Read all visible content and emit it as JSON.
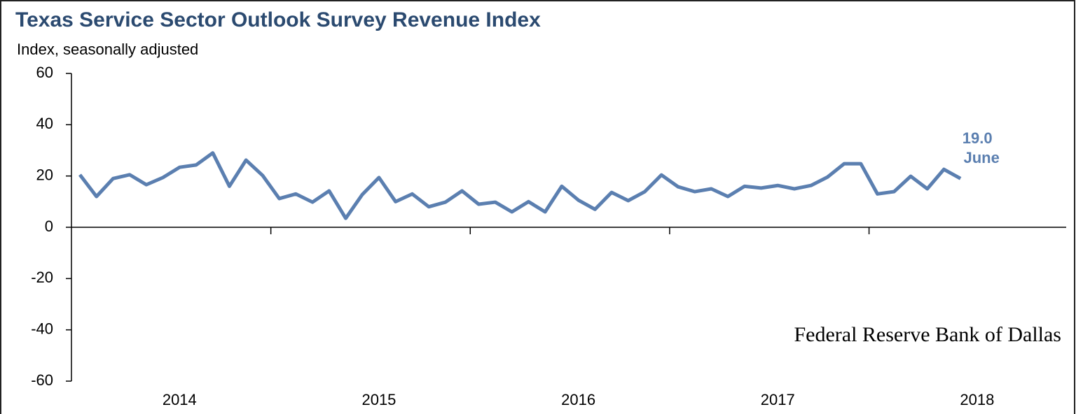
{
  "chart_data": {
    "type": "line",
    "title": "Texas Service Sector Outlook Survey Revenue Index",
    "subtitle": "Index, seasonally adjusted",
    "x_labels": [
      "2014",
      "2015",
      "2016",
      "2017",
      "2018"
    ],
    "series": [
      {
        "color": "#5b7fb0",
        "values": [
          20.5,
          12,
          19,
          20.5,
          16.6,
          19.4,
          23.4,
          24.3,
          29,
          16,
          26.2,
          20.2,
          11.2,
          13,
          9.8,
          14.2,
          3.5,
          12.8,
          19.4,
          10,
          13,
          8,
          9.8,
          14.2,
          9,
          9.8,
          6,
          10,
          6,
          16,
          10.6,
          7,
          13.6,
          10.4,
          13.9,
          20.4,
          15.8,
          13.9,
          15,
          12,
          16,
          15.3,
          16.3,
          15,
          16.3,
          19.6,
          24.8,
          24.8,
          13,
          13.9,
          19.9,
          15,
          22.6,
          19.0
        ]
      }
    ],
    "ylim": [
      -60,
      60
    ],
    "yticks": [
      -60,
      -40,
      -20,
      0,
      20,
      40,
      60
    ],
    "annotation": [
      "19.0",
      "June"
    ],
    "source": "Federal Reserve Bank of Dallas"
  }
}
